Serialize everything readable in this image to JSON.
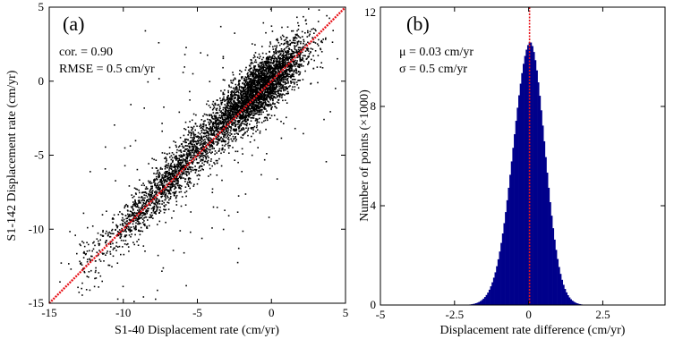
{
  "chart_data": [
    {
      "type": "scatter",
      "panel_label": "(a)",
      "xlabel": "S1-40 Displacement rate (cm/yr)",
      "ylabel": "S1-142 Displacement rate (cm/yr)",
      "xlim": [
        -15,
        5
      ],
      "ylim": [
        -15,
        5
      ],
      "xticks": [
        -15,
        -10,
        -5,
        0,
        5
      ],
      "yticks": [
        -15,
        -10,
        -5,
        0,
        5
      ],
      "annotations": [
        "cor. = 0.90",
        "RMSE = 0.5 cm/yr"
      ],
      "reference_line": {
        "style": "red-dotted",
        "x": [
          -15,
          5
        ],
        "y": [
          -15,
          5
        ]
      },
      "point_color": "#000000",
      "line_color": "#e8141b",
      "density_clusters": [
        {
          "x": -0.5,
          "y": -0.3,
          "sx": 1.4,
          "sy": 1.0,
          "weight": 0.5
        },
        {
          "x": -2.2,
          "y": -1.7,
          "sx": 1.0,
          "sy": 0.8,
          "weight": 0.12
        },
        {
          "x": -4.5,
          "y": -4.0,
          "sx": 1.2,
          "sy": 0.9,
          "weight": 0.12
        },
        {
          "x": -6.8,
          "y": -6.6,
          "sx": 1.0,
          "sy": 0.8,
          "weight": 0.12
        },
        {
          "x": -9.0,
          "y": -9.0,
          "sx": 0.8,
          "sy": 0.7,
          "weight": 0.07
        },
        {
          "x": -11.5,
          "y": -11.5,
          "sx": 1.2,
          "sy": 1.0,
          "weight": 0.03
        },
        {
          "x": -3.0,
          "y": -3.0,
          "sx": 5.0,
          "sy": 4.5,
          "weight": 0.04
        }
      ]
    },
    {
      "type": "bar",
      "subtype": "histogram",
      "panel_label": "(b)",
      "xlabel": "Displacement rate difference (cm/yr)",
      "ylabel": "Number of points (×1000)",
      "xlim": [
        -5,
        4.6
      ],
      "ylim": [
        0,
        12
      ],
      "xticks": [
        -5,
        -2.5,
        0,
        2.5
      ],
      "xtick_labels": [
        "-5",
        "-2.5",
        "0",
        "2.5"
      ],
      "yticks": [
        0,
        4,
        8,
        12
      ],
      "annotations": [
        "μ = 0.03 cm/yr",
        "σ = 0.5 cm/yr"
      ],
      "bar_color": "#00008b",
      "mean_line": {
        "x": 0.03,
        "style": "red-dotted",
        "color": "#e8141b"
      },
      "bin_width": 0.05,
      "bin_start": -3.5,
      "bin_end": 3.5,
      "peak_value": 10.2,
      "peak_center": 0.05,
      "sigma_left": 0.58,
      "sigma_right": 0.5
    }
  ]
}
